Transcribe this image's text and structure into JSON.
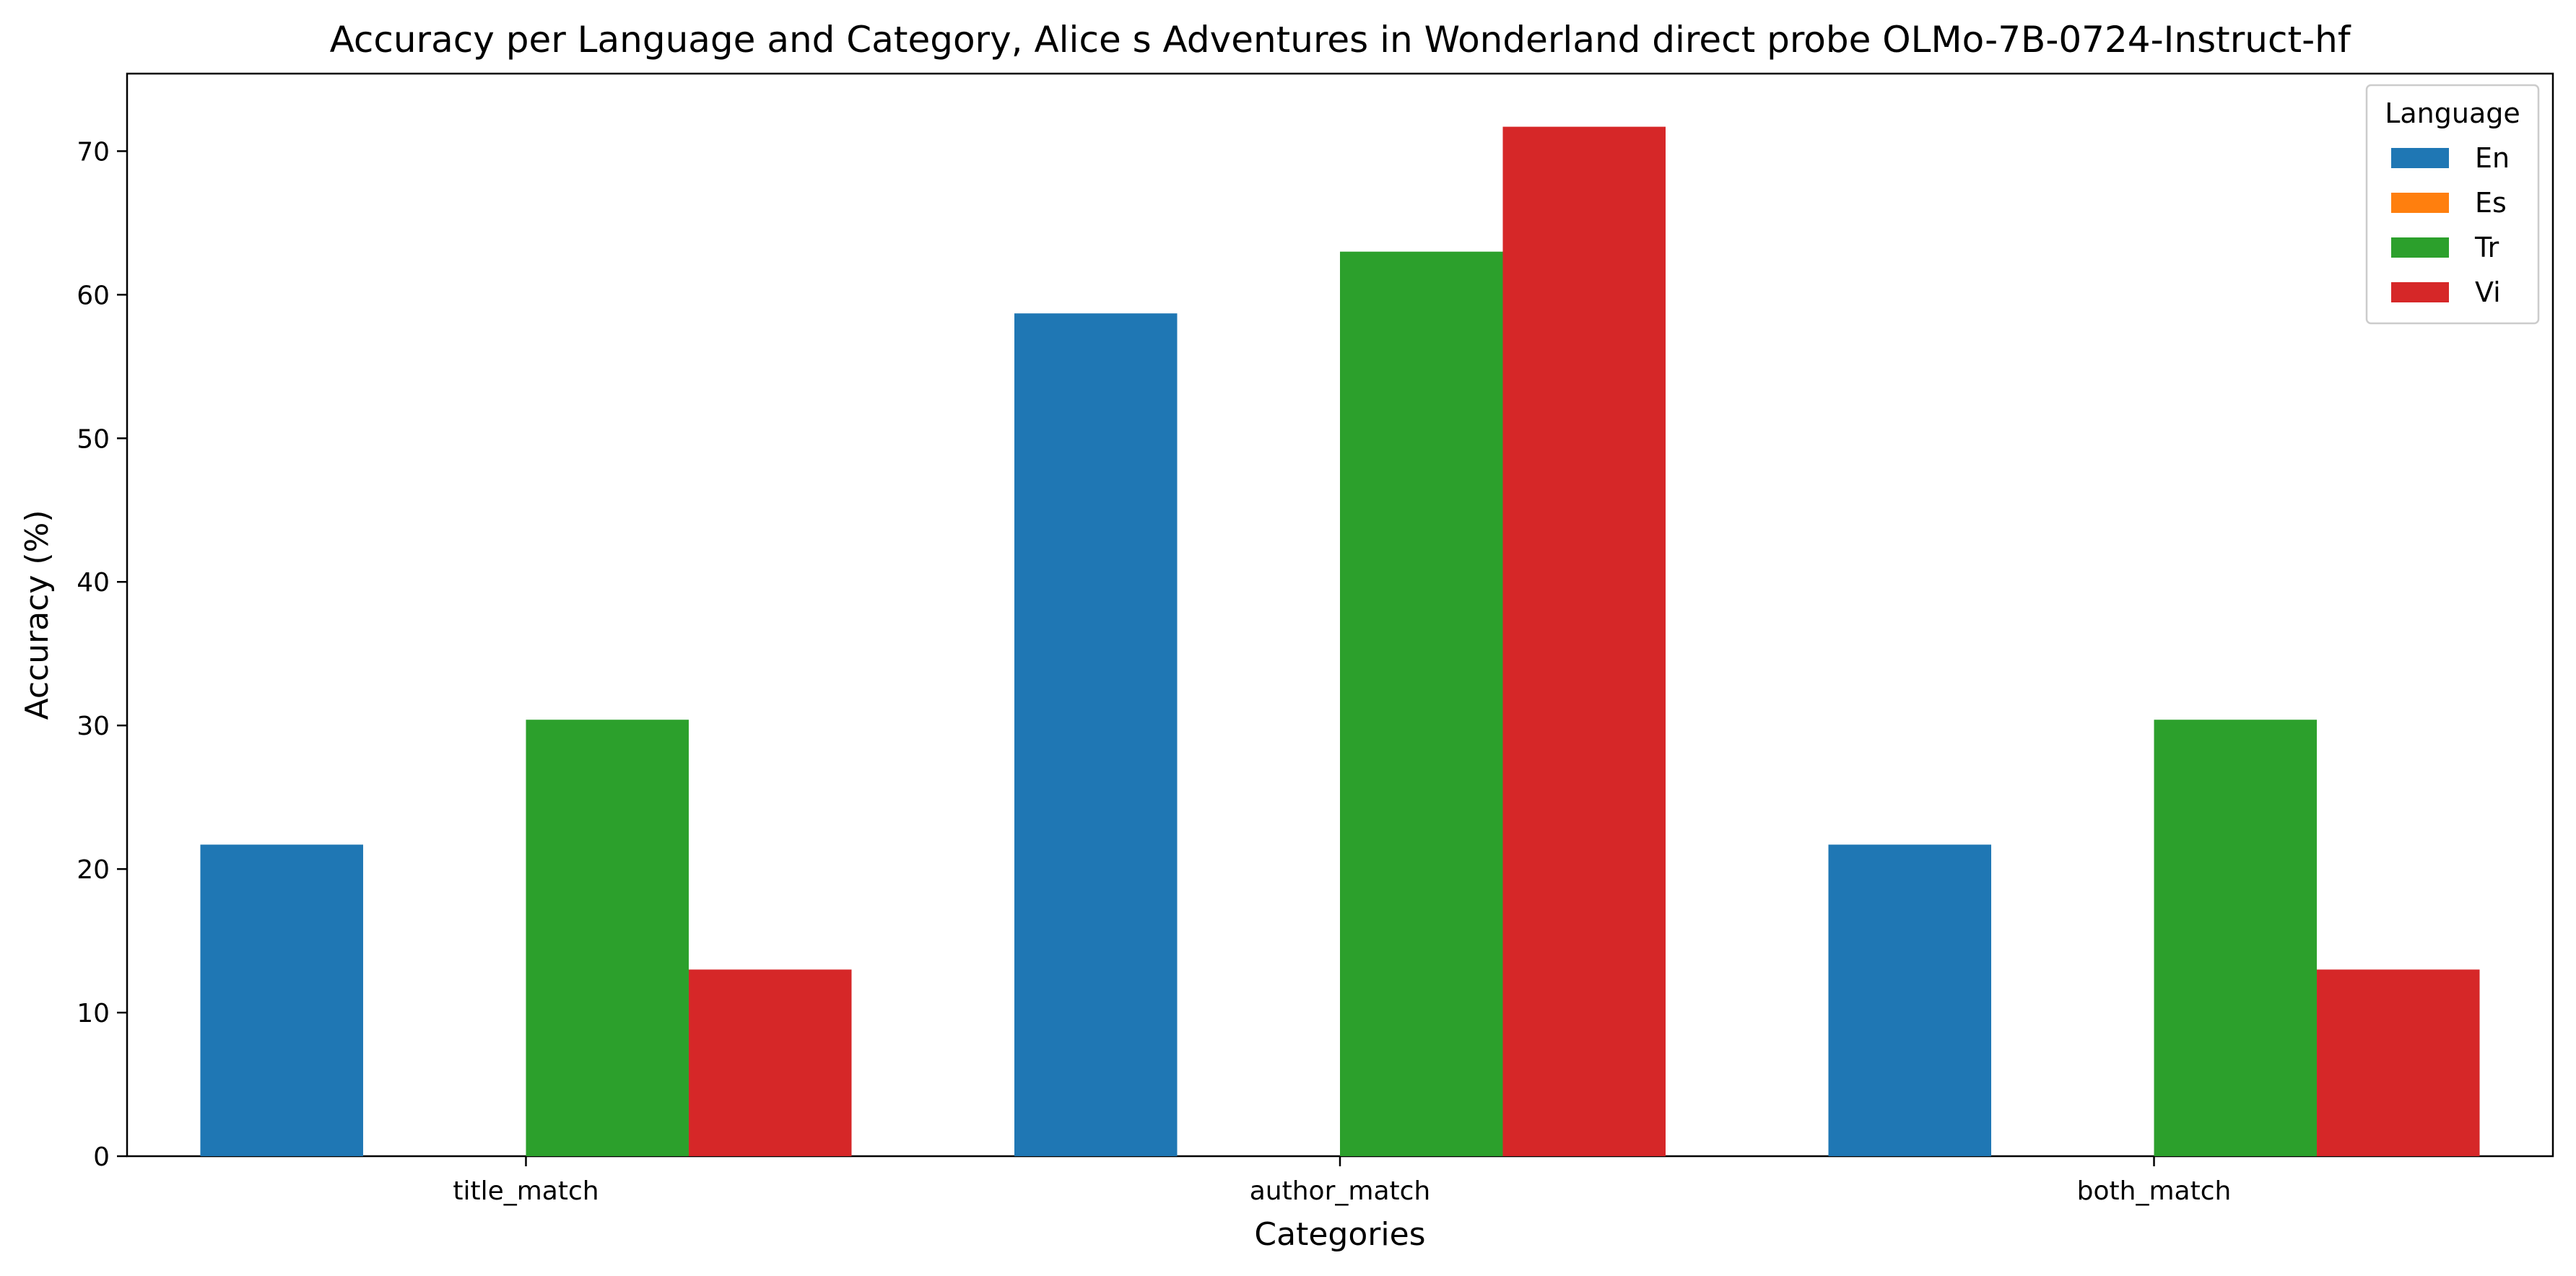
{
  "chart_data": {
    "type": "bar",
    "title": "Accuracy per Language and Category, Alice s Adventures in Wonderland direct probe OLMo-7B-0724-Instruct-hf",
    "xlabel": "Categories",
    "ylabel": "Accuracy (%)",
    "categories": [
      "title_match",
      "author_match",
      "both_match"
    ],
    "ylim": [
      0,
      75.4
    ],
    "yticks": [
      0,
      10,
      20,
      30,
      40,
      50,
      60,
      70
    ],
    "grid": false,
    "legend": {
      "title": "Language",
      "placement": "top-right"
    },
    "series": [
      {
        "name": "En",
        "color": "#1f77b4",
        "values": [
          21.7,
          58.7,
          21.7
        ]
      },
      {
        "name": "Es",
        "color": "#ff7f0e",
        "values": [
          0,
          0,
          0
        ]
      },
      {
        "name": "Tr",
        "color": "#2ca02c",
        "values": [
          30.4,
          63.0,
          30.4
        ]
      },
      {
        "name": "Vi",
        "color": "#d62728",
        "values": [
          13.0,
          71.7,
          13.0
        ]
      }
    ]
  }
}
